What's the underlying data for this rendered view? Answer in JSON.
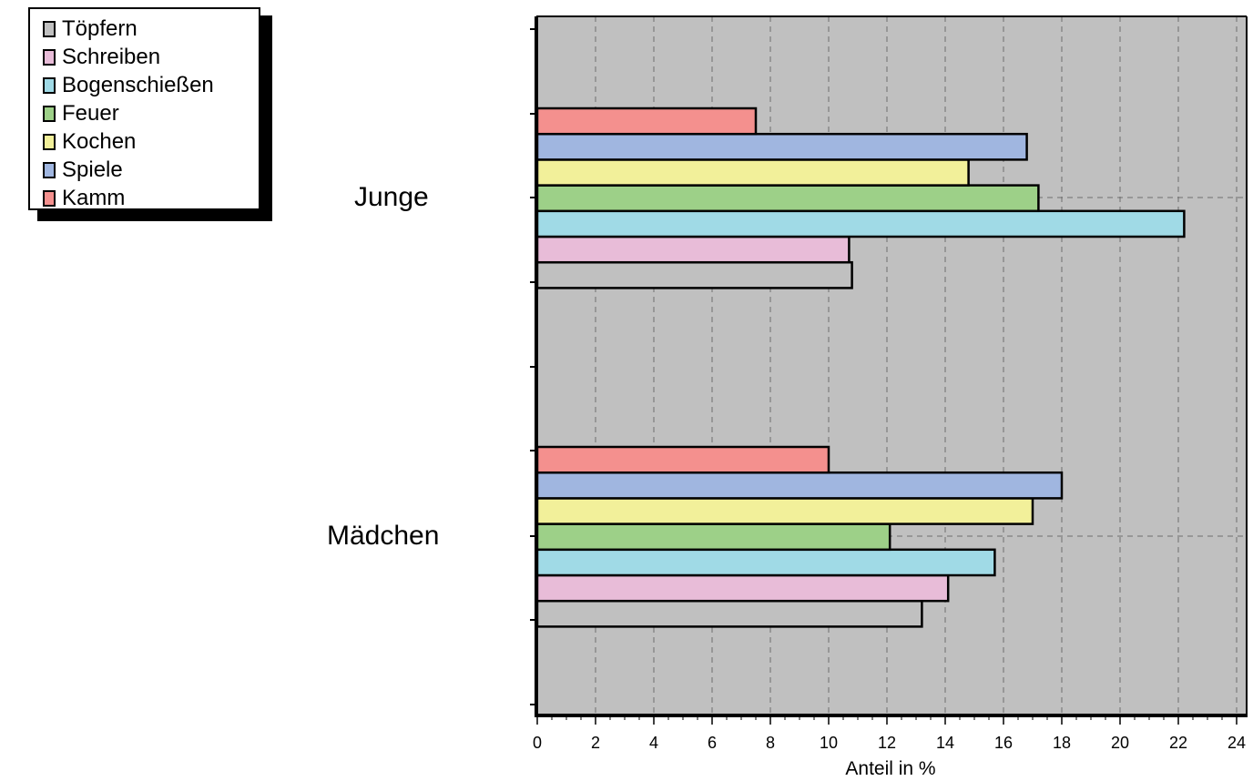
{
  "chart_data": {
    "type": "bar",
    "orientation": "horizontal",
    "categories": [
      "Junge",
      "Mädchen"
    ],
    "series": [
      {
        "name": "Töpfern",
        "color": "#c0c0c0",
        "values": [
          10.8,
          13.2
        ]
      },
      {
        "name": "Schreiben",
        "color": "#e8bcd8",
        "values": [
          10.7,
          14.1
        ]
      },
      {
        "name": "Bogenschießen",
        "color": "#a0dae6",
        "values": [
          22.2,
          15.7
        ]
      },
      {
        "name": "Feuer",
        "color": "#9dd088",
        "values": [
          17.2,
          12.1
        ]
      },
      {
        "name": "Kochen",
        "color": "#f2f09a",
        "values": [
          14.8,
          17.0
        ]
      },
      {
        "name": "Spiele",
        "color": "#a0b6e0",
        "values": [
          16.8,
          18.0
        ]
      },
      {
        "name": "Kamm",
        "color": "#f4908e",
        "values": [
          7.5,
          10.0
        ]
      }
    ],
    "xlabel": "Anteil in %",
    "xlim": [
      0,
      24.5
    ],
    "xticks": [
      "0",
      "2",
      "4",
      "6",
      "8",
      "10",
      "12",
      "14",
      "16",
      "18",
      "20",
      "22",
      "24"
    ],
    "grid": true,
    "legend": "top-left",
    "plot_background": "#c0c0c0"
  }
}
